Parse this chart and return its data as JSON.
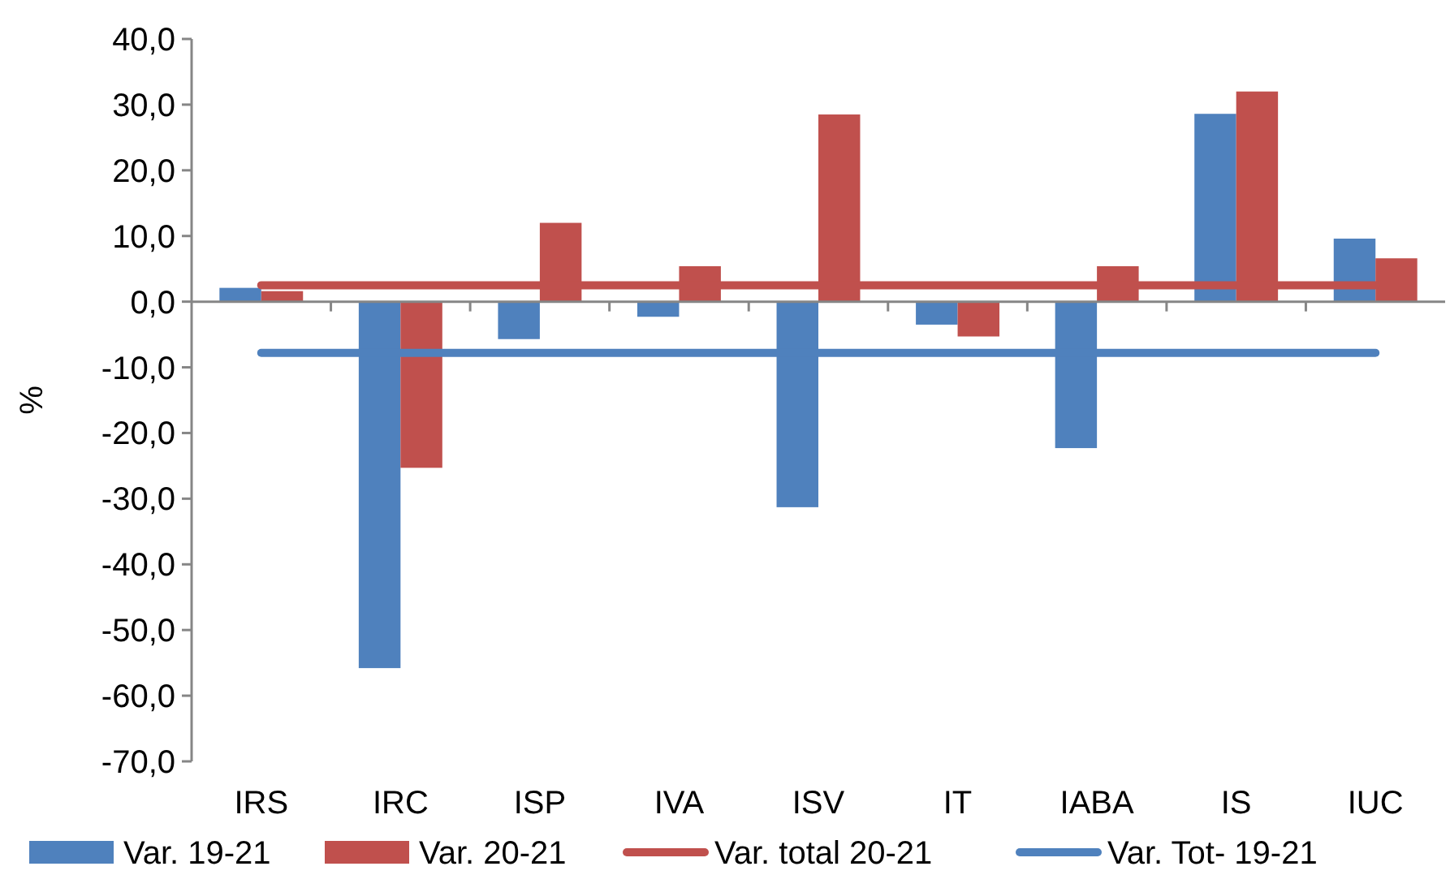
{
  "chart_data": {
    "type": "bar",
    "ylabel": "%",
    "categories": [
      "IRS",
      "IRC",
      "ISP",
      "IVA",
      "ISV",
      "IT",
      "IABA",
      "IS",
      "IUC"
    ],
    "series": [
      {
        "name": "Var. 19-21",
        "color": "#4f81bd",
        "values": [
          2.1,
          -55.8,
          -5.7,
          -2.3,
          -31.3,
          -3.5,
          -22.3,
          28.6,
          9.6
        ]
      },
      {
        "name": "Var. 20-21",
        "color": "#c0504d",
        "values": [
          1.6,
          -25.3,
          12.0,
          5.4,
          28.5,
          -5.3,
          5.4,
          32.0,
          6.6
        ]
      },
      {
        "name": "Var. total 20-21",
        "type": "line",
        "color": "#c0504d",
        "values": [
          2.5,
          2.5,
          2.5,
          2.5,
          2.5,
          2.5,
          2.5,
          2.5,
          2.5
        ]
      },
      {
        "name": "Var. Tot- 19-21",
        "type": "line",
        "color": "#4f81bd",
        "values": [
          -7.8,
          -7.8,
          -7.8,
          -7.8,
          -7.8,
          -7.8,
          -7.8,
          -7.8,
          -7.8
        ]
      }
    ],
    "ylim": [
      -70,
      40
    ],
    "yticks": [
      {
        "value": -70,
        "label": "-70,0"
      },
      {
        "value": -60,
        "label": "-60,0"
      },
      {
        "value": -50,
        "label": "-50,0"
      },
      {
        "value": -40,
        "label": "-40,0"
      },
      {
        "value": -30,
        "label": "-30,0"
      },
      {
        "value": -20,
        "label": "-20,0"
      },
      {
        "value": -10,
        "label": "-10,0"
      },
      {
        "value": 0,
        "label": "0,0"
      },
      {
        "value": 10,
        "label": "10,0"
      },
      {
        "value": 20,
        "label": "20,0"
      },
      {
        "value": 30,
        "label": "30,0"
      },
      {
        "value": 40,
        "label": "40,0"
      }
    ],
    "legend": "bottom",
    "marker": "none"
  }
}
